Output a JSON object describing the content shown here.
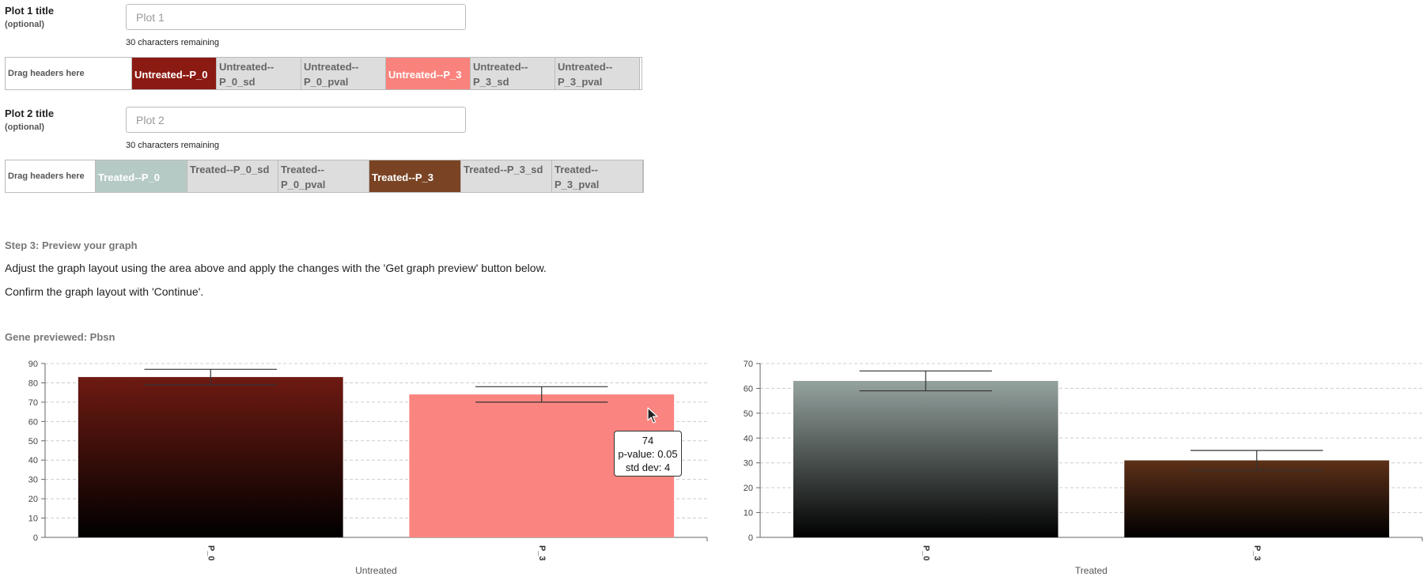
{
  "plot1": {
    "label": "Plot 1 title",
    "optional": "(optional)",
    "placeholder": "Plot 1",
    "value": "",
    "remaining": "30 characters remaining",
    "drag_label": "Drag headers here",
    "headers": [
      {
        "text": "Untreated--P_0",
        "active": true,
        "color": "#8b1a12"
      },
      {
        "text": "Untreated--P_0_sd",
        "active": false
      },
      {
        "text": "Untreated--P_0_pval",
        "active": false
      },
      {
        "text": "Untreated--P_3",
        "active": true,
        "color": "#f9837c"
      },
      {
        "text": "Untreated--P_3_sd",
        "active": false
      },
      {
        "text": "Untreated--P_3_pval",
        "active": false
      }
    ]
  },
  "plot2": {
    "label": "Plot 2 title",
    "optional": "(optional)",
    "placeholder": "Plot 2",
    "value": "",
    "remaining": "30 characters remaining",
    "drag_label": "Drag headers here",
    "headers": [
      {
        "text": "Treated--P_0",
        "active": true,
        "color": "#b6cac5"
      },
      {
        "text": "Treated--P_0_sd",
        "active": false
      },
      {
        "text": "Treated--P_0_pval",
        "active": false
      },
      {
        "text": "Treated--P_3",
        "active": true,
        "color": "#7a4424"
      },
      {
        "text": "Treated--P_3_sd",
        "active": false
      },
      {
        "text": "Treated--P_3_pval",
        "active": false
      }
    ]
  },
  "step3": {
    "title": "Step 3: Preview your graph",
    "line1": "Adjust the graph layout using the area above and apply the changes with the 'Get graph preview' button below.",
    "line2": "Confirm the graph layout with 'Continue'."
  },
  "gene_previewed": "Gene previewed: Pbsn",
  "tooltip": {
    "value": "74",
    "pval": "p-value: 0.05",
    "sd": "std dev: 4"
  },
  "chart_data": [
    {
      "type": "bar",
      "xlabel": "Untreated",
      "ylabel": "",
      "ylim": [
        0,
        90
      ],
      "yticks": [
        0,
        10,
        20,
        30,
        40,
        50,
        60,
        70,
        80,
        90
      ],
      "grid": true,
      "categories": [
        "P_0",
        "P_3"
      ],
      "values": [
        83,
        74
      ],
      "errors": [
        4,
        4
      ],
      "colors": [
        "#6e1a12",
        "#fa8580"
      ],
      "gradient": [
        true,
        false
      ]
    },
    {
      "type": "bar",
      "xlabel": "Treated",
      "ylabel": "",
      "ylim": [
        0,
        70
      ],
      "yticks": [
        0,
        10,
        20,
        30,
        40,
        50,
        60,
        70
      ],
      "grid": true,
      "categories": [
        "P_0",
        "P_3"
      ],
      "values": [
        63,
        31
      ],
      "errors": [
        4,
        4
      ],
      "colors": [
        "#95a39f",
        "#5d3018"
      ],
      "gradient": [
        true,
        true
      ]
    }
  ]
}
